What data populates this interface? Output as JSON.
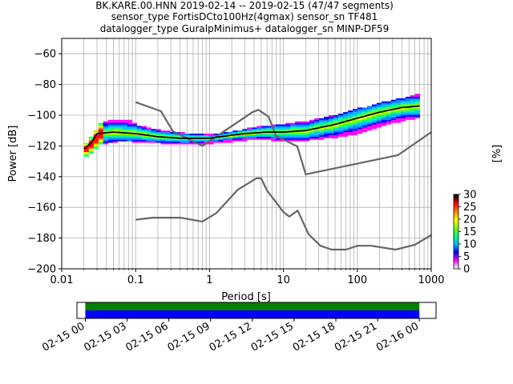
{
  "chart_data": {
    "type": "heatmap",
    "title_lines": [
      "BK.KARE.00.HNN   2019-02-14 -- 2019-02-15  (47/47 segments)",
      "sensor_type FortisDCto100Hz(4gmax) sensor_sn TF481",
      "datalogger_type GuralpMinimus+ datalogger_sn MINP-DF59"
    ],
    "xlabel": "Period [s]",
    "ylabel": "Power [dB]",
    "x_scale": "log",
    "xlim": [
      0.01,
      1000
    ],
    "ylim": [
      -200,
      -50
    ],
    "grid": true,
    "x_ticks": [
      {
        "value": 0.01,
        "label": "0.01"
      },
      {
        "value": 0.1,
        "label": "0.1"
      },
      {
        "value": 1,
        "label": "1"
      },
      {
        "value": 10,
        "label": "10"
      },
      {
        "value": 100,
        "label": "100"
      },
      {
        "value": 1000,
        "label": "1000"
      }
    ],
    "y_ticks": [
      -60,
      -80,
      -100,
      -120,
      -140,
      -160,
      -180,
      -200
    ],
    "colorbar": {
      "label": "[%]",
      "min": 0,
      "max": 30,
      "ticks": [
        0,
        5,
        10,
        15,
        20,
        25,
        30
      ],
      "colors": [
        "#ffffff",
        "#ff00ff",
        "#0000ff",
        "#00bfff",
        "#00ff7f",
        "#7fff00",
        "#ffff00",
        "#ff7f00",
        "#ff0000",
        "#000000"
      ]
    },
    "noise_model_high": [
      [
        0.1,
        -91.5
      ],
      [
        0.22,
        -97.4
      ],
      [
        0.32,
        -110.5
      ],
      [
        0.8,
        -120
      ],
      [
        3.8,
        -98
      ],
      [
        4.6,
        -96.5
      ],
      [
        6.3,
        -101
      ],
      [
        7.9,
        -113.5
      ],
      [
        15.4,
        -120.3
      ],
      [
        20,
        -138.5
      ],
      [
        354.8,
        -126
      ],
      [
        1000,
        -111
      ]
    ],
    "noise_model_low": [
      [
        0.1,
        -168
      ],
      [
        0.17,
        -166.7
      ],
      [
        0.4,
        -166.7
      ],
      [
        0.8,
        -169.2
      ],
      [
        1.24,
        -163.7
      ],
      [
        2.4,
        -148.6
      ],
      [
        4.3,
        -141.1
      ],
      [
        5,
        -141.1
      ],
      [
        6,
        -149
      ],
      [
        10,
        -163
      ],
      [
        12,
        -166
      ],
      [
        15.6,
        -162.1
      ],
      [
        21.9,
        -177.5
      ],
      [
        31.6,
        -185
      ],
      [
        45,
        -187.5
      ],
      [
        70,
        -187.5
      ],
      [
        101,
        -185
      ],
      [
        154,
        -185
      ],
      [
        328,
        -187.5
      ],
      [
        600,
        -184.4
      ],
      [
        1000,
        -178
      ]
    ],
    "mode_curve": [
      [
        0.02,
        -122
      ],
      [
        0.025,
        -118
      ],
      [
        0.03,
        -112
      ],
      [
        0.05,
        -111
      ],
      [
        0.1,
        -112
      ],
      [
        0.2,
        -114
      ],
      [
        0.4,
        -115
      ],
      [
        1,
        -115
      ],
      [
        2,
        -113
      ],
      [
        3,
        -112
      ],
      [
        6,
        -111
      ],
      [
        10,
        -111
      ],
      [
        20,
        -110
      ],
      [
        50,
        -106
      ],
      [
        100,
        -102
      ],
      [
        200,
        -98
      ],
      [
        400,
        -95
      ],
      [
        700,
        -94
      ]
    ],
    "heat_band": [
      [
        0.02,
        -127,
        -119
      ],
      [
        0.025,
        -124,
        -113
      ],
      [
        0.03,
        -119,
        -106
      ],
      [
        0.05,
        -117,
        -103
      ],
      [
        0.08,
        -117,
        -104
      ],
      [
        0.1,
        -118,
        -107
      ],
      [
        0.2,
        -118,
        -110
      ],
      [
        0.4,
        -119,
        -112
      ],
      [
        1,
        -118,
        -113
      ],
      [
        2,
        -117,
        -111
      ],
      [
        3,
        -116,
        -109
      ],
      [
        6,
        -116,
        -107
      ],
      [
        10,
        -117,
        -106
      ],
      [
        20,
        -116,
        -104
      ],
      [
        50,
        -114,
        -100
      ],
      [
        100,
        -112,
        -96
      ],
      [
        200,
        -107,
        -92
      ],
      [
        400,
        -103,
        -89
      ],
      [
        700,
        -101,
        -86
      ]
    ],
    "time_axis": {
      "labels": [
        "02-15 00",
        "02-15 03",
        "02-15 06",
        "02-15 09",
        "02-15 12",
        "02-15 15",
        "02-15 18",
        "02-15 21",
        "02-16 00"
      ],
      "range_hours": [
        -0.6,
        25.2
      ],
      "data_range_hours": [
        0,
        24
      ],
      "bar_colors": [
        "#008000",
        "#0000ff"
      ]
    }
  }
}
